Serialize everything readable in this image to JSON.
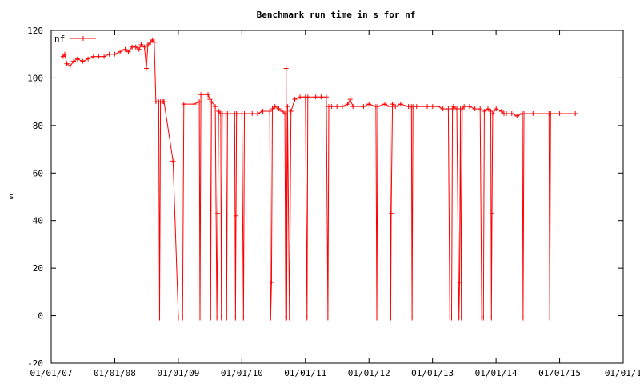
{
  "chart_data": {
    "type": "line",
    "title": "Benchmark run time in s for nf",
    "xlabel": "",
    "ylabel": "s",
    "xlim": [
      "2007-01-01",
      "2016-01-01"
    ],
    "ylim": [
      -20,
      120
    ],
    "x_ticks": [
      "01/01/07",
      "01/01/08",
      "01/01/09",
      "01/01/10",
      "01/01/11",
      "01/01/12",
      "01/01/13",
      "01/01/14",
      "01/01/15",
      "01/01/1"
    ],
    "y_ticks": [
      -20,
      0,
      20,
      40,
      60,
      80,
      100,
      120
    ],
    "legend": {
      "position": "top-left",
      "entries": [
        {
          "name": "nf",
          "color": "#ff0000",
          "marker": "plus"
        }
      ]
    },
    "grid": false,
    "series": [
      {
        "name": "nf",
        "color": "#ff0000",
        "points": [
          [
            "2007-03-10",
            109
          ],
          [
            "2007-03-20",
            110
          ],
          [
            "2007-04-01",
            106
          ],
          [
            "2007-04-20",
            105
          ],
          [
            "2007-05-10",
            107
          ],
          [
            "2007-06-01",
            108
          ],
          [
            "2007-07-01",
            107
          ],
          [
            "2007-08-01",
            108
          ],
          [
            "2007-09-01",
            109
          ],
          [
            "2007-10-01",
            109
          ],
          [
            "2007-11-01",
            109
          ],
          [
            "2007-12-01",
            110
          ],
          [
            "2008-01-01",
            110
          ],
          [
            "2008-02-01",
            111
          ],
          [
            "2008-03-01",
            112
          ],
          [
            "2008-03-20",
            111
          ],
          [
            "2008-04-10",
            113
          ],
          [
            "2008-05-01",
            113
          ],
          [
            "2008-05-20",
            112
          ],
          [
            "2008-06-01",
            114
          ],
          [
            "2008-06-20",
            113
          ],
          [
            "2008-07-01",
            104
          ],
          [
            "2008-07-10",
            114
          ],
          [
            "2008-07-25",
            115
          ],
          [
            "2008-08-05",
            116
          ],
          [
            "2008-08-15",
            115
          ],
          [
            "2008-08-25",
            90
          ],
          [
            "2008-09-10",
            90
          ],
          [
            "2008-09-15",
            -1
          ],
          [
            "2008-09-20",
            90
          ],
          [
            "2008-10-05",
            90
          ],
          [
            "2008-10-10",
            90
          ],
          [
            "2008-12-01",
            65
          ],
          [
            "2009-01-01",
            -1
          ],
          [
            "2009-01-25",
            -1
          ],
          [
            "2009-02-01",
            89
          ],
          [
            "2009-04-01",
            89
          ],
          [
            "2009-05-01",
            90
          ],
          [
            "2009-05-05",
            -1
          ],
          [
            "2009-05-10",
            93
          ],
          [
            "2009-06-20",
            93
          ],
          [
            "2009-07-01",
            91
          ],
          [
            "2009-07-05",
            -1
          ],
          [
            "2009-07-10",
            90
          ],
          [
            "2009-08-01",
            88
          ],
          [
            "2009-08-10",
            -1
          ],
          [
            "2009-08-15",
            43
          ],
          [
            "2009-08-20",
            86
          ],
          [
            "2009-09-01",
            85
          ],
          [
            "2009-09-05",
            -1
          ],
          [
            "2009-09-10",
            85
          ],
          [
            "2009-10-01",
            85
          ],
          [
            "2009-10-05",
            -1
          ],
          [
            "2009-10-10",
            85
          ],
          [
            "2009-11-20",
            85
          ],
          [
            "2009-11-25",
            -1
          ],
          [
            "2009-11-28",
            42
          ],
          [
            "2009-12-01",
            85
          ],
          [
            "2010-01-01",
            85
          ],
          [
            "2010-01-10",
            -1
          ],
          [
            "2010-01-15",
            85
          ],
          [
            "2010-03-01",
            85
          ],
          [
            "2010-04-01",
            85
          ],
          [
            "2010-05-01",
            86
          ],
          [
            "2010-06-10",
            86
          ],
          [
            "2010-06-15",
            -1
          ],
          [
            "2010-06-20",
            14
          ],
          [
            "2010-06-25",
            87
          ],
          [
            "2010-07-10",
            88
          ],
          [
            "2010-08-01",
            87
          ],
          [
            "2010-08-20",
            86
          ],
          [
            "2010-09-05",
            85
          ],
          [
            "2010-09-10",
            -1
          ],
          [
            "2010-09-12",
            104
          ],
          [
            "2010-09-15",
            -1
          ],
          [
            "2010-09-20",
            88
          ],
          [
            "2010-10-01",
            -1
          ],
          [
            "2010-10-10",
            86
          ],
          [
            "2010-11-01",
            91
          ],
          [
            "2010-12-01",
            92
          ],
          [
            "2011-01-01",
            92
          ],
          [
            "2011-01-10",
            -1
          ],
          [
            "2011-01-15",
            92
          ],
          [
            "2011-03-01",
            92
          ],
          [
            "2011-04-01",
            92
          ],
          [
            "2011-05-01",
            92
          ],
          [
            "2011-05-10",
            -1
          ],
          [
            "2011-05-15",
            88
          ],
          [
            "2011-06-01",
            88
          ],
          [
            "2011-07-01",
            88
          ],
          [
            "2011-08-01",
            88
          ],
          [
            "2011-09-01",
            89
          ],
          [
            "2011-09-15",
            91
          ],
          [
            "2011-10-01",
            88
          ],
          [
            "2011-12-01",
            88
          ],
          [
            "2012-01-01",
            89
          ],
          [
            "2012-02-10",
            88
          ],
          [
            "2012-02-15",
            -1
          ],
          [
            "2012-02-20",
            88
          ],
          [
            "2012-04-01",
            89
          ],
          [
            "2012-05-01",
            88
          ],
          [
            "2012-05-05",
            -1
          ],
          [
            "2012-05-08",
            43
          ],
          [
            "2012-05-15",
            89
          ],
          [
            "2012-06-01",
            88
          ],
          [
            "2012-07-01",
            89
          ],
          [
            "2012-08-15",
            88
          ],
          [
            "2012-09-01",
            88
          ],
          [
            "2012-09-05",
            -1
          ],
          [
            "2012-09-10",
            88
          ],
          [
            "2012-10-01",
            88
          ],
          [
            "2012-11-01",
            88
          ],
          [
            "2012-12-01",
            88
          ],
          [
            "2013-01-01",
            88
          ],
          [
            "2013-02-01",
            88
          ],
          [
            "2013-03-01",
            87
          ],
          [
            "2013-04-01",
            87
          ],
          [
            "2013-04-10",
            -1
          ],
          [
            "2013-04-20",
            -1
          ],
          [
            "2013-04-25",
            87
          ],
          [
            "2013-05-01",
            88
          ],
          [
            "2013-05-20",
            87
          ],
          [
            "2013-06-01",
            -1
          ],
          [
            "2013-06-05",
            14
          ],
          [
            "2013-06-10",
            87
          ],
          [
            "2013-06-15",
            -1
          ],
          [
            "2013-06-20",
            87
          ],
          [
            "2013-07-01",
            88
          ],
          [
            "2013-08-01",
            88
          ],
          [
            "2013-09-01",
            87
          ],
          [
            "2013-10-01",
            87
          ],
          [
            "2013-10-10",
            -1
          ],
          [
            "2013-10-20",
            -1
          ],
          [
            "2013-10-25",
            86
          ],
          [
            "2013-11-15",
            87
          ],
          [
            "2013-12-01",
            86
          ],
          [
            "2013-12-05",
            -1
          ],
          [
            "2013-12-08",
            43
          ],
          [
            "2013-12-12",
            85
          ],
          [
            "2014-01-01",
            87
          ],
          [
            "2014-02-01",
            86
          ],
          [
            "2014-02-15",
            85
          ],
          [
            "2014-03-01",
            85
          ],
          [
            "2014-04-01",
            85
          ],
          [
            "2014-05-01",
            84
          ],
          [
            "2014-06-01",
            85
          ],
          [
            "2014-06-05",
            -1
          ],
          [
            "2014-06-10",
            85
          ],
          [
            "2014-08-01",
            85
          ],
          [
            "2014-11-01",
            85
          ],
          [
            "2014-11-05",
            -1
          ],
          [
            "2014-11-10",
            85
          ],
          [
            "2015-01-01",
            85
          ],
          [
            "2015-03-01",
            85
          ],
          [
            "2015-04-01",
            85
          ]
        ]
      }
    ]
  }
}
